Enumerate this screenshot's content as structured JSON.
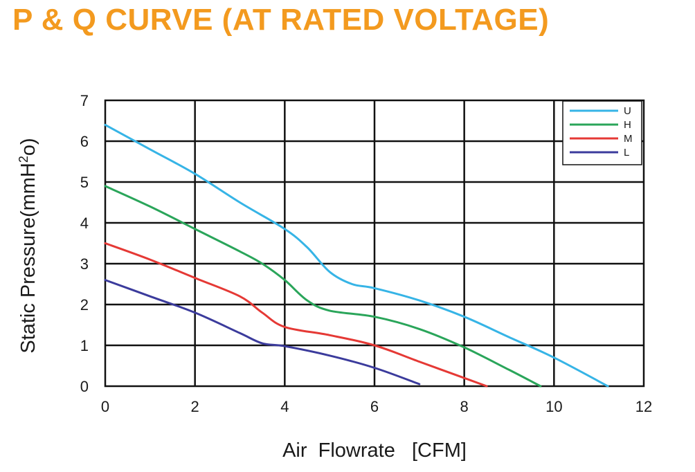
{
  "title": "P & Q CURVE (AT RATED VOLTAGE)",
  "chart_data": {
    "type": "line",
    "title": "P & Q CURVE (AT RATED VOLTAGE)",
    "xlabel": "Air  Flowrate   [CFM]",
    "ylabel_parts": [
      "Static Pressure(mmH",
      "2",
      "o)"
    ],
    "xlim": [
      0,
      12
    ],
    "ylim": [
      0,
      7
    ],
    "xticks": [
      "0",
      "2",
      "4",
      "6",
      "8",
      "10",
      "12"
    ],
    "yticks": [
      "0",
      "1",
      "2",
      "3",
      "4",
      "5",
      "6",
      "7"
    ],
    "grid": true,
    "legend_position": "top-right",
    "series": [
      {
        "name": "U",
        "color": "#36b4e6",
        "x": [
          0,
          1,
          2,
          3,
          4,
          4.5,
          5,
          5.5,
          6,
          7,
          8,
          9,
          10,
          11.2
        ],
        "y": [
          6.4,
          5.8,
          5.2,
          4.5,
          3.85,
          3.4,
          2.8,
          2.5,
          2.4,
          2.1,
          1.7,
          1.2,
          0.7,
          0
        ]
      },
      {
        "name": "H",
        "color": "#2aa55a",
        "x": [
          0,
          1,
          2,
          3,
          3.5,
          4,
          4.5,
          5,
          6,
          7,
          8,
          9,
          9.7
        ],
        "y": [
          4.9,
          4.4,
          3.85,
          3.3,
          3.0,
          2.6,
          2.1,
          1.85,
          1.7,
          1.4,
          0.95,
          0.4,
          0
        ]
      },
      {
        "name": "M",
        "color": "#e53935",
        "x": [
          0,
          1,
          2,
          3,
          3.5,
          4,
          5,
          6,
          7,
          8,
          8.5
        ],
        "y": [
          3.5,
          3.1,
          2.65,
          2.2,
          1.8,
          1.45,
          1.25,
          1.0,
          0.6,
          0.2,
          0
        ]
      },
      {
        "name": "L",
        "color": "#3b3b9c",
        "x": [
          0,
          1,
          2,
          3,
          3.5,
          4,
          5,
          6,
          7
        ],
        "y": [
          2.6,
          2.2,
          1.8,
          1.3,
          1.05,
          0.98,
          0.75,
          0.45,
          0.05
        ]
      }
    ]
  }
}
